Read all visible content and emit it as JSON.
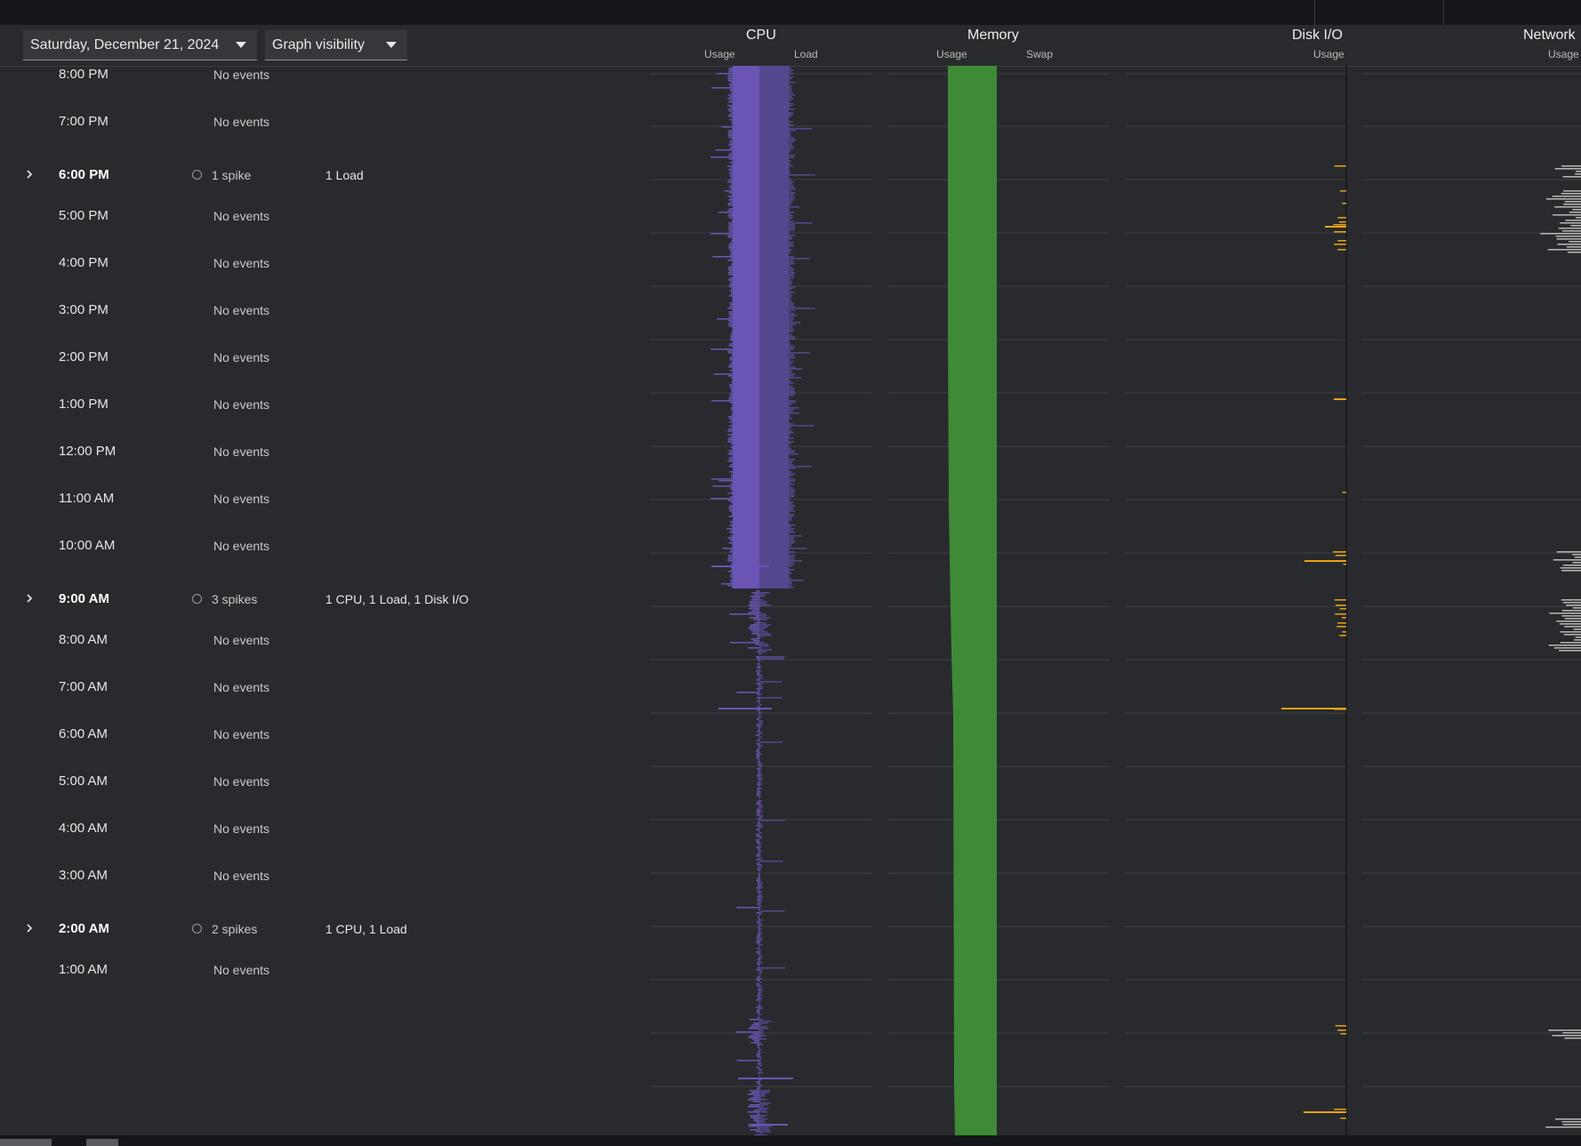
{
  "date_select": {
    "label": "Saturday, December 21, 2024"
  },
  "visibility_select": {
    "label": "Graph visibility"
  },
  "columns": {
    "cpu": {
      "title": "CPU",
      "sub": [
        "Usage",
        "Load"
      ]
    },
    "memory": {
      "title": "Memory",
      "sub": [
        "Usage",
        "Swap"
      ]
    },
    "disk": {
      "title": "Disk I/O",
      "sub": [
        "Usage"
      ]
    },
    "network": {
      "title": "Network",
      "sub": [
        "Usage"
      ]
    }
  },
  "rows": [
    {
      "time": "8:00 PM",
      "events": "No events",
      "detail": "",
      "spike": false
    },
    {
      "time": "7:00 PM",
      "events": "No events",
      "detail": "",
      "spike": false
    },
    {
      "time": "6:00 PM",
      "events": "1 spike",
      "detail": "1 Load",
      "spike": true
    },
    {
      "time": "5:00 PM",
      "events": "No events",
      "detail": "",
      "spike": false
    },
    {
      "time": "4:00 PM",
      "events": "No events",
      "detail": "",
      "spike": false
    },
    {
      "time": "3:00 PM",
      "events": "No events",
      "detail": "",
      "spike": false
    },
    {
      "time": "2:00 PM",
      "events": "No events",
      "detail": "",
      "spike": false
    },
    {
      "time": "1:00 PM",
      "events": "No events",
      "detail": "",
      "spike": false
    },
    {
      "time": "12:00 PM",
      "events": "No events",
      "detail": "",
      "spike": false
    },
    {
      "time": "11:00 AM",
      "events": "No events",
      "detail": "",
      "spike": false
    },
    {
      "time": "10:00 AM",
      "events": "No events",
      "detail": "",
      "spike": false
    },
    {
      "time": "9:00 AM",
      "events": "3 spikes",
      "detail": "1 CPU, 1 Load, 1 Disk I/O",
      "spike": true
    },
    {
      "time": "8:00 AM",
      "events": "No events",
      "detail": "",
      "spike": false
    },
    {
      "time": "7:00 AM",
      "events": "No events",
      "detail": "",
      "spike": false
    },
    {
      "time": "6:00 AM",
      "events": "No events",
      "detail": "",
      "spike": false
    },
    {
      "time": "5:00 AM",
      "events": "No events",
      "detail": "",
      "spike": false
    },
    {
      "time": "4:00 AM",
      "events": "No events",
      "detail": "",
      "spike": false
    },
    {
      "time": "3:00 AM",
      "events": "No events",
      "detail": "",
      "spike": false
    },
    {
      "time": "2:00 AM",
      "events": "2 spikes",
      "detail": "1 CPU, 1 Load",
      "spike": true
    },
    {
      "time": "1:00 AM",
      "events": "No events",
      "detail": "",
      "spike": false
    }
  ],
  "colors": {
    "cpu_usage": "#6a55b4",
    "cpu_load": "#55478e",
    "memory": "#3e8a36",
    "disk": "#e8a317",
    "network": "#b8b8b8"
  },
  "icons": {
    "expand": "chevron-right-icon",
    "spike": "circle-spike-icon"
  }
}
